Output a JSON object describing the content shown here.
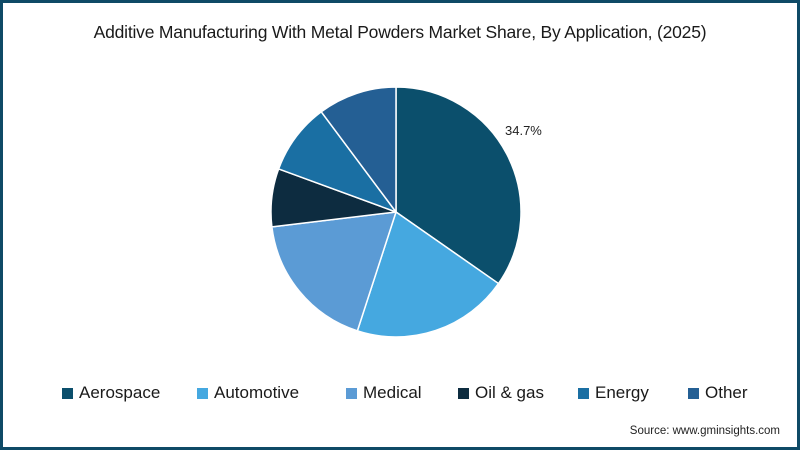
{
  "chart_data": {
    "type": "pie",
    "title": "Additive Manufacturing With Metal Powders Market Share, By Application, (2025)",
    "categories": [
      "Aerospace",
      "Automotive",
      "Medical",
      "Oil & gas",
      "Energy",
      "Other"
    ],
    "values": [
      34.7,
      20.3,
      18.1,
      7.5,
      9.2,
      10.2
    ],
    "colors": [
      "#0b4f6c",
      "#45a8e0",
      "#5b9bd5",
      "#0d2c40",
      "#1a6fa3",
      "#245f94"
    ],
    "data_labels": [
      {
        "category": "Aerospace",
        "text": "34.7%"
      }
    ],
    "start_angle": "12 o'clock",
    "direction": "clockwise",
    "legend_position": "bottom",
    "source": "Source: www.gminsights.com"
  },
  "header": {
    "title": "Additive Manufacturing With Metal Powders Market Share, By Application, (2025)"
  },
  "labels": {
    "aerospace_pct": "34.7%"
  },
  "legend": {
    "items": [
      {
        "label": "Aerospace",
        "color": "#0b4f6c"
      },
      {
        "label": "Automotive",
        "color": "#45a8e0"
      },
      {
        "label": "Medical",
        "color": "#5b9bd5"
      },
      {
        "label": "Oil & gas",
        "color": "#0d2c40"
      },
      {
        "label": "Energy",
        "color": "#1a6fa3"
      },
      {
        "label": "Other",
        "color": "#245f94"
      }
    ]
  },
  "footer": {
    "source": "Source: www.gminsights.com"
  },
  "colors": {
    "border": "#0e4a66",
    "slice_separator": "#ffffff"
  }
}
